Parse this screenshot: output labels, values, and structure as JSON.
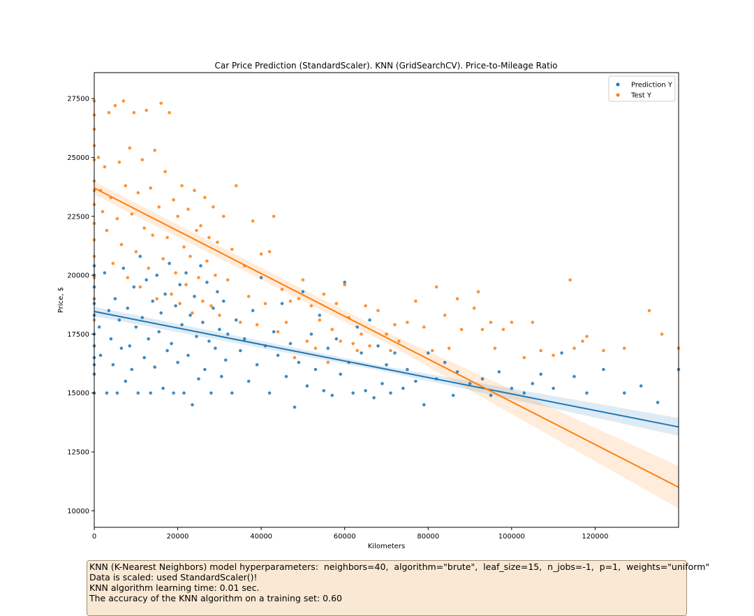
{
  "chart_data": {
    "type": "scatter",
    "title": "Car Price Prediction (StandardScaler). KNN (GridSearchCV). Price-to-Mileage Ratio",
    "xlabel": "Kilometers",
    "ylabel": "Price, $",
    "xlim": [
      0,
      140000
    ],
    "ylim": [
      9300,
      28600
    ],
    "xticks": [
      0,
      20000,
      40000,
      60000,
      80000,
      100000,
      120000
    ],
    "yticks": [
      10000,
      12500,
      15000,
      17500,
      20000,
      22500,
      25000,
      27500
    ],
    "xtick_labels": [
      "0",
      "20000",
      "40000",
      "60000",
      "80000",
      "100000",
      "120000"
    ],
    "ytick_labels": [
      "10000",
      "12500",
      "15000",
      "17500",
      "20000",
      "22500",
      "25000",
      "27500"
    ],
    "grid": false,
    "legend_position": "top-right",
    "series": [
      {
        "name": "Prediction Y",
        "color": "#1f77b4",
        "kind": "scatter+regression",
        "regression_line": {
          "x": [
            0,
            140000
          ],
          "y": [
            18460,
            13560
          ]
        },
        "confidence_band_halfwidth": {
          "x": [
            0,
            70000,
            140000
          ],
          "y": [
            200,
            110,
            380
          ]
        },
        "points": [
          [
            0,
            20000
          ],
          [
            0,
            19000
          ],
          [
            0,
            18300
          ],
          [
            0,
            17500
          ],
          [
            0,
            16500
          ],
          [
            0,
            15800
          ],
          [
            0,
            15000
          ],
          [
            0,
            20400
          ],
          [
            0,
            19500
          ],
          [
            0,
            17000
          ],
          [
            0,
            16200
          ],
          [
            0,
            18800
          ],
          [
            1200,
            17800
          ],
          [
            1500,
            16600
          ],
          [
            2500,
            20100
          ],
          [
            3000,
            15000
          ],
          [
            3500,
            18500
          ],
          [
            4000,
            17300
          ],
          [
            4500,
            16200
          ],
          [
            5000,
            19000
          ],
          [
            5500,
            15000
          ],
          [
            6000,
            18100
          ],
          [
            6500,
            16900
          ],
          [
            7000,
            20300
          ],
          [
            7500,
            15500
          ],
          [
            8000,
            18600
          ],
          [
            8500,
            17000
          ],
          [
            9000,
            16000
          ],
          [
            9500,
            19500
          ],
          [
            10000,
            17800
          ],
          [
            10500,
            15000
          ],
          [
            11000,
            20800
          ],
          [
            11500,
            18200
          ],
          [
            12000,
            16500
          ],
          [
            12500,
            19800
          ],
          [
            13000,
            17300
          ],
          [
            13500,
            15000
          ],
          [
            14000,
            18900
          ],
          [
            14500,
            16100
          ],
          [
            15000,
            20000
          ],
          [
            15500,
            17600
          ],
          [
            16000,
            18400
          ],
          [
            16500,
            15200
          ],
          [
            17000,
            19200
          ],
          [
            17500,
            16800
          ],
          [
            18000,
            20500
          ],
          [
            18500,
            17100
          ],
          [
            19000,
            15000
          ],
          [
            19500,
            18700
          ],
          [
            20000,
            16300
          ],
          [
            20500,
            19600
          ],
          [
            21000,
            17900
          ],
          [
            21500,
            15000
          ],
          [
            22000,
            20100
          ],
          [
            22500,
            16600
          ],
          [
            23000,
            18300
          ],
          [
            23500,
            14500
          ],
          [
            24000,
            19100
          ],
          [
            24500,
            17400
          ],
          [
            25000,
            15600
          ],
          [
            25500,
            20400
          ],
          [
            26000,
            18000
          ],
          [
            26500,
            16000
          ],
          [
            27000,
            19700
          ],
          [
            27500,
            17200
          ],
          [
            28000,
            15000
          ],
          [
            28500,
            18600
          ],
          [
            29000,
            16900
          ],
          [
            29500,
            19300
          ],
          [
            30000,
            17700
          ],
          [
            30500,
            15700
          ],
          [
            31000,
            18900
          ],
          [
            31500,
            16400
          ],
          [
            32000,
            17500
          ],
          [
            33000,
            15000
          ],
          [
            34000,
            18100
          ],
          [
            35000,
            16800
          ],
          [
            36000,
            17300
          ],
          [
            37000,
            15500
          ],
          [
            38000,
            18500
          ],
          [
            39000,
            16200
          ],
          [
            40000,
            19900
          ],
          [
            41000,
            17000
          ],
          [
            42000,
            15000
          ],
          [
            43000,
            17600
          ],
          [
            44000,
            16600
          ],
          [
            45000,
            18800
          ],
          [
            46000,
            15700
          ],
          [
            47000,
            17100
          ],
          [
            48000,
            14400
          ],
          [
            49000,
            16300
          ],
          [
            50000,
            19300
          ],
          [
            51000,
            15300
          ],
          [
            52000,
            17500
          ],
          [
            53000,
            16000
          ],
          [
            54000,
            18300
          ],
          [
            55000,
            15100
          ],
          [
            56000,
            16900
          ],
          [
            57000,
            14900
          ],
          [
            58000,
            17300
          ],
          [
            59000,
            15800
          ],
          [
            60000,
            19700
          ],
          [
            61000,
            16300
          ],
          [
            62000,
            15000
          ],
          [
            63000,
            17800
          ],
          [
            64000,
            16700
          ],
          [
            65000,
            15100
          ],
          [
            66000,
            18100
          ],
          [
            67000,
            14800
          ],
          [
            68000,
            17000
          ],
          [
            69000,
            15400
          ],
          [
            70000,
            16200
          ],
          [
            71000,
            15000
          ],
          [
            72000,
            16700
          ],
          [
            74000,
            15200
          ],
          [
            75000,
            16000
          ],
          [
            77000,
            15500
          ],
          [
            79000,
            14500
          ],
          [
            80000,
            16700
          ],
          [
            82000,
            15600
          ],
          [
            84000,
            16300
          ],
          [
            86000,
            14900
          ],
          [
            87000,
            15900
          ],
          [
            90000,
            15400
          ],
          [
            93000,
            15600
          ],
          [
            95000,
            14900
          ],
          [
            97000,
            15900
          ],
          [
            100000,
            15200
          ],
          [
            103000,
            15000
          ],
          [
            105000,
            15400
          ],
          [
            107000,
            15800
          ],
          [
            110000,
            15200
          ],
          [
            112000,
            16700
          ],
          [
            115000,
            15700
          ],
          [
            118000,
            15000
          ],
          [
            122000,
            16000
          ],
          [
            127000,
            15000
          ],
          [
            131000,
            15300
          ],
          [
            135000,
            14600
          ],
          [
            140000,
            16000
          ]
        ]
      },
      {
        "name": "Test Y",
        "color": "#ff7f0e",
        "kind": "scatter+regression",
        "regression_line": {
          "x": [
            0,
            140000
          ],
          "y": [
            23700,
            11000
          ]
        },
        "confidence_band_halfwidth": {
          "x": [
            0,
            70000,
            140000
          ],
          "y": [
            280,
            230,
            900
          ]
        },
        "points": [
          [
            0,
            27400
          ],
          [
            0,
            26800
          ],
          [
            0,
            25500
          ],
          [
            0,
            24900
          ],
          [
            0,
            24000
          ],
          [
            0,
            23000
          ],
          [
            0,
            22200
          ],
          [
            0,
            21500
          ],
          [
            0,
            20800
          ],
          [
            0,
            19900
          ],
          [
            0,
            19000
          ],
          [
            0,
            18100
          ],
          [
            0,
            26200
          ],
          [
            0,
            23600
          ],
          [
            1000,
            25000
          ],
          [
            1500,
            23600
          ],
          [
            2000,
            22700
          ],
          [
            2500,
            24600
          ],
          [
            3000,
            21900
          ],
          [
            3500,
            26900
          ],
          [
            4000,
            23300
          ],
          [
            4500,
            20500
          ],
          [
            5000,
            27200
          ],
          [
            5500,
            22400
          ],
          [
            6000,
            24800
          ],
          [
            6500,
            21300
          ],
          [
            7000,
            27400
          ],
          [
            7500,
            23800
          ],
          [
            8000,
            19900
          ],
          [
            8500,
            25400
          ],
          [
            9000,
            22600
          ],
          [
            9500,
            26900
          ],
          [
            10000,
            21000
          ],
          [
            10500,
            23500
          ],
          [
            11000,
            19500
          ],
          [
            11500,
            24900
          ],
          [
            12000,
            22000
          ],
          [
            12500,
            27000
          ],
          [
            13000,
            20300
          ],
          [
            13500,
            23700
          ],
          [
            14000,
            21700
          ],
          [
            14500,
            25300
          ],
          [
            15000,
            19000
          ],
          [
            15500,
            22900
          ],
          [
            16000,
            27300
          ],
          [
            16500,
            20700
          ],
          [
            17000,
            24400
          ],
          [
            17500,
            21600
          ],
          [
            18000,
            26900
          ],
          [
            18500,
            19200
          ],
          [
            19000,
            23200
          ],
          [
            19500,
            20100
          ],
          [
            20000,
            22500
          ],
          [
            20500,
            18800
          ],
          [
            21000,
            23800
          ],
          [
            21500,
            21200
          ],
          [
            22000,
            19600
          ],
          [
            22500,
            22800
          ],
          [
            23000,
            20800
          ],
          [
            23500,
            18400
          ],
          [
            24000,
            23600
          ],
          [
            24500,
            21900
          ],
          [
            25000,
            19900
          ],
          [
            25500,
            22100
          ],
          [
            26000,
            18900
          ],
          [
            26500,
            23300
          ],
          [
            27000,
            20600
          ],
          [
            27500,
            21600
          ],
          [
            28000,
            18700
          ],
          [
            28500,
            22900
          ],
          [
            29000,
            20000
          ],
          [
            29500,
            21400
          ],
          [
            30000,
            18300
          ],
          [
            31000,
            22500
          ],
          [
            32000,
            19800
          ],
          [
            33000,
            21100
          ],
          [
            34000,
            23800
          ],
          [
            35000,
            18000
          ],
          [
            36000,
            20400
          ],
          [
            37000,
            19100
          ],
          [
            38000,
            22300
          ],
          [
            39000,
            17900
          ],
          [
            40000,
            20900
          ],
          [
            41000,
            18800
          ],
          [
            42000,
            21000
          ],
          [
            43000,
            22500
          ],
          [
            44000,
            17600
          ],
          [
            45000,
            19400
          ],
          [
            46000,
            18000
          ],
          [
            47000,
            18900
          ],
          [
            48000,
            16500
          ],
          [
            49000,
            19000
          ],
          [
            50000,
            19800
          ],
          [
            51000,
            17200
          ],
          [
            52000,
            18700
          ],
          [
            53000,
            16900
          ],
          [
            54000,
            18100
          ],
          [
            55000,
            19200
          ],
          [
            56000,
            16300
          ],
          [
            57000,
            17700
          ],
          [
            58000,
            18800
          ],
          [
            59000,
            17200
          ],
          [
            60000,
            19600
          ],
          [
            61000,
            18200
          ],
          [
            62000,
            17100
          ],
          [
            63000,
            16800
          ],
          [
            64000,
            17500
          ],
          [
            65000,
            18700
          ],
          [
            66000,
            17000
          ],
          [
            68000,
            18500
          ],
          [
            70000,
            17500
          ],
          [
            71000,
            16800
          ],
          [
            72000,
            17900
          ],
          [
            73000,
            17200
          ],
          [
            75000,
            18000
          ],
          [
            77000,
            18900
          ],
          [
            79000,
            17800
          ],
          [
            81000,
            16800
          ],
          [
            82000,
            19500
          ],
          [
            84000,
            18300
          ],
          [
            85000,
            16900
          ],
          [
            87000,
            19000
          ],
          [
            88000,
            17700
          ],
          [
            91000,
            18600
          ],
          [
            92000,
            19300
          ],
          [
            93000,
            17700
          ],
          [
            95000,
            18000
          ],
          [
            96000,
            16900
          ],
          [
            98000,
            17700
          ],
          [
            100000,
            18000
          ],
          [
            103000,
            16500
          ],
          [
            105000,
            18000
          ],
          [
            107000,
            16800
          ],
          [
            110000,
            16600
          ],
          [
            114000,
            19800
          ],
          [
            115000,
            16900
          ],
          [
            117000,
            17200
          ],
          [
            118000,
            17400
          ],
          [
            122000,
            16800
          ],
          [
            127000,
            16900
          ],
          [
            133000,
            18500
          ],
          [
            136000,
            17500
          ],
          [
            140000,
            16900
          ]
        ]
      }
    ]
  },
  "info_box": {
    "lines": [
      "KNN (K-Nearest Neighbors) model hyperparameters:  neighbors=40,  algorithm=\"brute\",  leaf_size=15,  n_jobs=-1,  p=1,  weights=\"uniform\"",
      "Data is scaled: used StandardScaler()!",
      "KNN algorithm learning time: 0.01 sec.",
      "The accuracy of the KNN algorithm on a training set: 0.60"
    ]
  }
}
